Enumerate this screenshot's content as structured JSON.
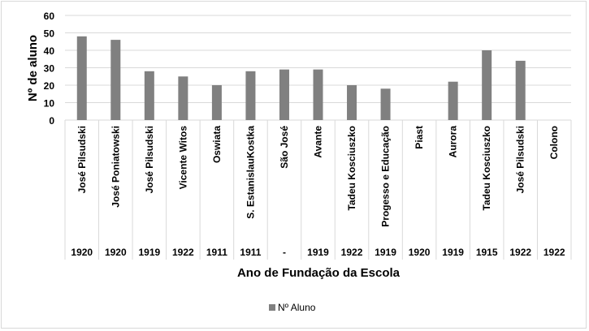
{
  "chart_data": {
    "type": "bar",
    "title": "",
    "ylabel": "Nº de aluno",
    "xlabel": "Ano de Fundação da Escola",
    "ylim": [
      0,
      60
    ],
    "yticks": [
      0,
      10,
      20,
      30,
      40,
      50,
      60
    ],
    "grid": true,
    "legend_position": "bottom",
    "categories": [
      "José Pilsudski",
      "José Poniatowski",
      "José Pilsudski",
      "Vicente Witos",
      "Oswiata",
      "S. EstanislauKostka",
      "São José",
      "Avante",
      "Tadeu Kosciuszko",
      "Progesso e Educação",
      "Piast",
      "Aurora",
      "Tadeu Kosciuszko",
      "José Pilsudski",
      "Colono"
    ],
    "years": [
      "1920",
      "1920",
      "1919",
      "1922",
      "1911",
      "1911",
      "-",
      "1919",
      "1922",
      "1919",
      "1920",
      "1919",
      "1915",
      "1922",
      "1922"
    ],
    "series": [
      {
        "name": "Nº Aluno",
        "color": "#808080",
        "values": [
          48,
          46,
          28,
          25,
          20,
          28,
          29,
          29,
          20,
          18,
          0,
          22,
          40,
          34,
          0
        ]
      }
    ]
  }
}
